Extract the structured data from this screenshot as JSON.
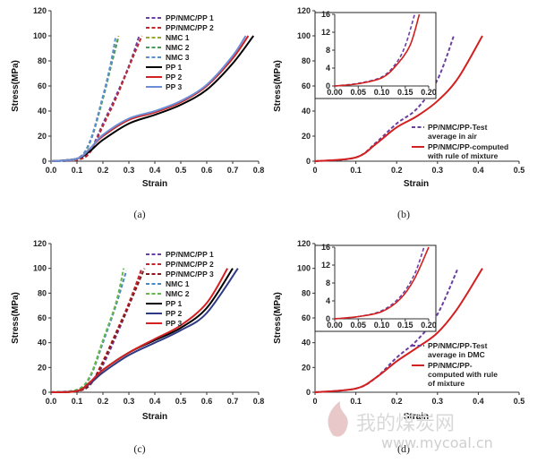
{
  "chart_data": [
    {
      "type": "line",
      "caption": "(a)",
      "xlabel": "Strain",
      "ylabel": "Stress(MPa)",
      "xlim": [
        0,
        0.8
      ],
      "ylim": [
        0,
        120
      ],
      "xticks": [
        "0.0",
        "0.1",
        "0.2",
        "0.3",
        "0.4",
        "0.5",
        "0.6",
        "0.7",
        "0.8"
      ],
      "yticks": [
        "0",
        "20",
        "40",
        "60",
        "80",
        "100",
        "120"
      ],
      "legend": "top-left",
      "series": [
        {
          "name": "PP/NMC/PP 1",
          "color": "#6b3fa0",
          "dash": true,
          "x": [
            0,
            0.1,
            0.15,
            0.2,
            0.25,
            0.3,
            0.34
          ],
          "y": [
            0,
            1,
            8,
            30,
            52,
            76,
            100
          ]
        },
        {
          "name": "PP/NMC/PP 2",
          "color": "#c0282d",
          "dash": true,
          "x": [
            0,
            0.1,
            0.15,
            0.2,
            0.25,
            0.3,
            0.35
          ],
          "y": [
            0,
            1,
            7,
            28,
            50,
            75,
            100
          ]
        },
        {
          "name": "NMC 1",
          "color": "#9aa832",
          "dash": true,
          "x": [
            0,
            0.1,
            0.15,
            0.2,
            0.23,
            0.26
          ],
          "y": [
            0,
            2,
            15,
            50,
            75,
            100
          ]
        },
        {
          "name": "NMC 2",
          "color": "#4c9a5a",
          "dash": true,
          "x": [
            0,
            0.1,
            0.15,
            0.2,
            0.23,
            0.26
          ],
          "y": [
            0,
            2,
            15,
            50,
            75,
            99
          ]
        },
        {
          "name": "NMC 3",
          "color": "#5b8fd0",
          "dash": true,
          "x": [
            0,
            0.1,
            0.15,
            0.2,
            0.23,
            0.25
          ],
          "y": [
            0,
            2,
            16,
            52,
            78,
            100
          ]
        },
        {
          "name": "PP 1",
          "color": "#000000",
          "dash": false,
          "x": [
            0,
            0.1,
            0.15,
            0.2,
            0.3,
            0.4,
            0.5,
            0.6,
            0.7,
            0.78
          ],
          "y": [
            0,
            2,
            8,
            17,
            30,
            37,
            45,
            57,
            78,
            100
          ]
        },
        {
          "name": "PP 2",
          "color": "#d32020",
          "dash": false,
          "x": [
            0,
            0.1,
            0.15,
            0.2,
            0.3,
            0.4,
            0.5,
            0.6,
            0.7,
            0.76
          ],
          "y": [
            0,
            2,
            10,
            20,
            33,
            39,
            47,
            60,
            82,
            100
          ]
        },
        {
          "name": "PP 3",
          "color": "#6b8ed6",
          "dash": false,
          "x": [
            0,
            0.1,
            0.15,
            0.2,
            0.3,
            0.4,
            0.5,
            0.6,
            0.7,
            0.75
          ],
          "y": [
            0,
            2,
            10,
            21,
            34,
            40,
            48,
            61,
            84,
            100
          ]
        }
      ]
    },
    {
      "type": "line",
      "caption": "(b)",
      "xlabel": "Strain",
      "ylabel": "Stress(MPa)",
      "xlim": [
        0,
        0.5
      ],
      "ylim": [
        0,
        120
      ],
      "xticks": [
        "0",
        "0.1",
        "0.2",
        "0.3",
        "0.4",
        "0.5"
      ],
      "yticks": [
        "0",
        "20",
        "40",
        "60",
        "80",
        "100",
        "120"
      ],
      "legend": "middle-right",
      "series": [
        {
          "name": "PP/NMC/PP-Test average in air",
          "color": "#6b3fa0",
          "dash": true,
          "x": [
            0,
            0.1,
            0.15,
            0.2,
            0.25,
            0.3,
            0.34
          ],
          "y": [
            0,
            3,
            15,
            30,
            42,
            65,
            100
          ]
        },
        {
          "name": "PP/NMC/PP-computed with rule of mixture",
          "color": "#d32020",
          "dash": false,
          "x": [
            0,
            0.1,
            0.15,
            0.2,
            0.25,
            0.3,
            0.35,
            0.41
          ],
          "y": [
            0,
            3,
            14,
            27,
            36,
            48,
            66,
            100
          ]
        }
      ],
      "inset": {
        "xlim": [
          0,
          0.2
        ],
        "ylim": [
          0,
          16
        ],
        "xticks": [
          "0.00",
          "0.05",
          "0.10",
          "0.15",
          "0.20"
        ],
        "yticks": [
          "0",
          "4",
          "8",
          "12",
          "16"
        ],
        "series": [
          {
            "color": "#6b3fa0",
            "dash": true,
            "x": [
              0,
              0.05,
              0.1,
              0.13,
              0.15,
              0.17
            ],
            "y": [
              0,
              0.6,
              2,
              5,
              9,
              16
            ]
          },
          {
            "color": "#d32020",
            "dash": false,
            "x": [
              0,
              0.05,
              0.1,
              0.13,
              0.16,
              0.18
            ],
            "y": [
              0,
              0.5,
              1.8,
              4.5,
              9,
              16
            ]
          }
        ]
      }
    },
    {
      "type": "line",
      "caption": "(c)",
      "xlabel": "Strain",
      "ylabel": "Stress(MPa)",
      "xlim": [
        0,
        0.8
      ],
      "ylim": [
        0,
        120
      ],
      "xticks": [
        "0.0",
        "0.1",
        "0.2",
        "0.3",
        "0.4",
        "0.5",
        "0.6",
        "0.7",
        "0.8"
      ],
      "yticks": [
        "0",
        "20",
        "40",
        "60",
        "80",
        "100",
        "120"
      ],
      "legend": "top-right",
      "series": [
        {
          "name": "PP/NMC/PP 1",
          "color": "#6b3fa0",
          "dash": true,
          "x": [
            0,
            0.1,
            0.15,
            0.2,
            0.25,
            0.3,
            0.35
          ],
          "y": [
            0,
            1,
            6,
            22,
            45,
            70,
            100
          ]
        },
        {
          "name": "PP/NMC/PP 2",
          "color": "#c0282d",
          "dash": true,
          "x": [
            0,
            0.1,
            0.15,
            0.2,
            0.25,
            0.3,
            0.35
          ],
          "y": [
            0,
            1,
            6,
            25,
            48,
            72,
            100
          ]
        },
        {
          "name": "PP/NMC/PP 3",
          "color": "#8b1a1a",
          "dash": true,
          "x": [
            0,
            0.1,
            0.15,
            0.2,
            0.25,
            0.3,
            0.36
          ],
          "y": [
            0,
            1,
            6,
            24,
            47,
            70,
            100
          ]
        },
        {
          "name": "NMC 1",
          "color": "#4b86c5",
          "dash": true,
          "x": [
            0,
            0.1,
            0.15,
            0.2,
            0.25,
            0.29
          ],
          "y": [
            0,
            2,
            12,
            40,
            70,
            98
          ]
        },
        {
          "name": "NMC 2",
          "color": "#65b848",
          "dash": true,
          "x": [
            0,
            0.1,
            0.15,
            0.2,
            0.25,
            0.28
          ],
          "y": [
            0,
            2,
            13,
            42,
            72,
            100
          ]
        },
        {
          "name": "PP 1",
          "color": "#000000",
          "dash": false,
          "x": [
            0,
            0.1,
            0.15,
            0.2,
            0.3,
            0.4,
            0.5,
            0.6,
            0.7
          ],
          "y": [
            0,
            1,
            8,
            18,
            32,
            42,
            52,
            68,
            100
          ]
        },
        {
          "name": "PP 2",
          "color": "#2f3a84",
          "dash": false,
          "x": [
            0,
            0.1,
            0.15,
            0.2,
            0.3,
            0.4,
            0.5,
            0.6,
            0.72
          ],
          "y": [
            0,
            1,
            7,
            16,
            30,
            40,
            50,
            64,
            100
          ]
        },
        {
          "name": "PP 3",
          "color": "#d32020",
          "dash": false,
          "x": [
            0,
            0.1,
            0.15,
            0.2,
            0.3,
            0.4,
            0.5,
            0.6,
            0.68
          ],
          "y": [
            0,
            1,
            8,
            18,
            32,
            43,
            54,
            72,
            100
          ]
        }
      ]
    },
    {
      "type": "line",
      "caption": "(d)",
      "xlabel": "Strain",
      "ylabel": "Stress(MPa)",
      "xlim": [
        0,
        0.5
      ],
      "ylim": [
        0,
        120
      ],
      "xticks": [
        "0",
        "0.1",
        "0.2",
        "0.3",
        "0.4",
        "0.5"
      ],
      "yticks": [
        "0",
        "20",
        "40",
        "60",
        "80",
        "100",
        "120"
      ],
      "legend": "middle-right",
      "series": [
        {
          "name": "PP/NMC/PP-Test average in DMC",
          "color": "#6b3fa0",
          "dash": true,
          "x": [
            0,
            0.1,
            0.15,
            0.2,
            0.25,
            0.3,
            0.35
          ],
          "y": [
            0,
            3,
            12,
            28,
            42,
            63,
            100
          ]
        },
        {
          "name": "PP/NMC/PP-computed with rule of mixture",
          "color": "#d32020",
          "dash": false,
          "x": [
            0,
            0.1,
            0.15,
            0.2,
            0.25,
            0.3,
            0.35,
            0.41
          ],
          "y": [
            0,
            3,
            12,
            25,
            36,
            48,
            68,
            100
          ]
        }
      ],
      "inset": {
        "xlim": [
          0,
          0.2
        ],
        "ylim": [
          0,
          16
        ],
        "xticks": [
          "0.00",
          "0.05",
          "0.10",
          "0.15",
          "0.20"
        ],
        "yticks": [
          "0",
          "4",
          "8",
          "12",
          "16"
        ],
        "series": [
          {
            "color": "#6b3fa0",
            "dash": true,
            "x": [
              0,
              0.05,
              0.1,
              0.14,
              0.17,
              0.19
            ],
            "y": [
              0,
              0.5,
              1.8,
              5,
              10,
              16
            ]
          },
          {
            "color": "#d32020",
            "dash": false,
            "x": [
              0,
              0.05,
              0.1,
              0.14,
              0.17,
              0.2
            ],
            "y": [
              0,
              0.5,
              1.6,
              4.5,
              9,
              16
            ]
          }
        ]
      }
    }
  ],
  "legend_text": {
    "b": [
      "PP/NMC/PP-Test",
      "average in air",
      "PP/NMC/PP-computed",
      "with rule of  mixture"
    ],
    "d": [
      "PP/NMC/PP-Test",
      "average in DMC",
      "PP/NMC/PP-",
      "computed with rule",
      "of mixture"
    ]
  },
  "watermark": {
    "text": "我的煤炭网",
    "url": "www.mycoal.cn"
  }
}
